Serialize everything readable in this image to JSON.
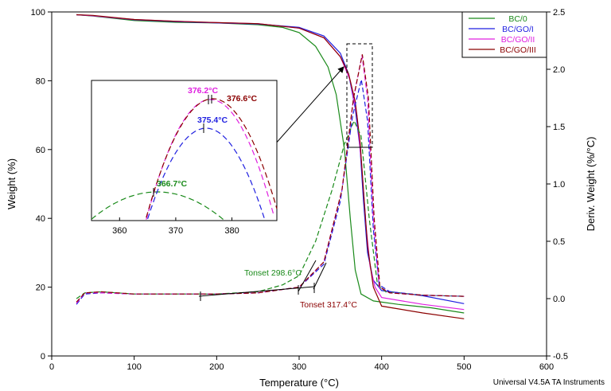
{
  "chart_data": {
    "type": "line",
    "xlabel": "Temperature (°C)",
    "ylabel_left": "Weight (%)",
    "ylabel_right": "Deriv. Weight (%/°C)",
    "xlim": [
      0,
      600
    ],
    "ylim_left": [
      0,
      100
    ],
    "ylim_right": [
      -0.5,
      2.5
    ],
    "x_ticks": [
      "0",
      "100",
      "200",
      "300",
      "400",
      "500",
      "600"
    ],
    "y_left_ticks": [
      "0",
      "20",
      "40",
      "60",
      "80",
      "100"
    ],
    "y_right_ticks": [
      "-0.5",
      "0.0",
      "0.5",
      "1.0",
      "1.5",
      "2.0",
      "2.5"
    ],
    "footer": "Universal V4.5A TA Instruments",
    "legend": {
      "position": "top-right",
      "entries": [
        {
          "label": "BC/0",
          "color": "#1a8a1a"
        },
        {
          "label": "BC/GO/I",
          "color": "#1f1fe0"
        },
        {
          "label": "BC/GO/II",
          "color": "#e020e0"
        },
        {
          "label": "BC/GO/III",
          "color": "#8b0000"
        }
      ]
    },
    "weight_series": [
      {
        "name": "BC/0",
        "color": "#1a8a1a",
        "points": [
          [
            30,
            99.2
          ],
          [
            50,
            98.8
          ],
          [
            100,
            97.5
          ],
          [
            150,
            97
          ],
          [
            200,
            96.8
          ],
          [
            250,
            96.3
          ],
          [
            280,
            95.5
          ],
          [
            300,
            94
          ],
          [
            320,
            90
          ],
          [
            335,
            84
          ],
          [
            345,
            76
          ],
          [
            355,
            60
          ],
          [
            362,
            40
          ],
          [
            368,
            25
          ],
          [
            375,
            18
          ],
          [
            390,
            16
          ],
          [
            420,
            15
          ],
          [
            460,
            14
          ],
          [
            500,
            12.5
          ]
        ]
      },
      {
        "name": "BC/GO/I",
        "color": "#1f1fe0",
        "points": [
          [
            30,
            99.2
          ],
          [
            50,
            98.9
          ],
          [
            100,
            97.7
          ],
          [
            150,
            97.2
          ],
          [
            200,
            96.8
          ],
          [
            250,
            96.5
          ],
          [
            300,
            95.5
          ],
          [
            330,
            93
          ],
          [
            350,
            88
          ],
          [
            360,
            82
          ],
          [
            368,
            72
          ],
          [
            374,
            60
          ],
          [
            378,
            45
          ],
          [
            383,
            30
          ],
          [
            390,
            22
          ],
          [
            400,
            19
          ],
          [
            450,
            17.5
          ],
          [
            500,
            15.2
          ]
        ]
      },
      {
        "name": "BC/GO/II",
        "color": "#e020e0",
        "points": [
          [
            30,
            99.2
          ],
          [
            50,
            98.9
          ],
          [
            100,
            97.8
          ],
          [
            150,
            97.3
          ],
          [
            200,
            96.9
          ],
          [
            250,
            96.6
          ],
          [
            300,
            95.3
          ],
          [
            330,
            92.5
          ],
          [
            350,
            87
          ],
          [
            362,
            80
          ],
          [
            370,
            70
          ],
          [
            376,
            55
          ],
          [
            381,
            38
          ],
          [
            386,
            26
          ],
          [
            392,
            20
          ],
          [
            400,
            17
          ],
          [
            450,
            15
          ],
          [
            500,
            13.5
          ]
        ]
      },
      {
        "name": "BC/GO/III",
        "color": "#8b0000",
        "points": [
          [
            30,
            99.2
          ],
          [
            50,
            99
          ],
          [
            100,
            97.8
          ],
          [
            150,
            97.3
          ],
          [
            200,
            96.9
          ],
          [
            250,
            96.6
          ],
          [
            300,
            95.3
          ],
          [
            330,
            92.5
          ],
          [
            350,
            87
          ],
          [
            360,
            82
          ],
          [
            368,
            74
          ],
          [
            374,
            62
          ],
          [
            378,
            48
          ],
          [
            383,
            32
          ],
          [
            390,
            20
          ],
          [
            400,
            14.5
          ],
          [
            450,
            12.5
          ],
          [
            500,
            10.8
          ]
        ]
      }
    ],
    "deriv_series": [
      {
        "name": "BC/0",
        "color": "#1a8a1a",
        "points": [
          [
            30,
            0.0
          ],
          [
            40,
            0.05
          ],
          [
            60,
            0.06
          ],
          [
            100,
            0.04
          ],
          [
            150,
            0.04
          ],
          [
            200,
            0.04
          ],
          [
            250,
            0.06
          ],
          [
            280,
            0.12
          ],
          [
            300,
            0.2
          ],
          [
            320,
            0.5
          ],
          [
            340,
            0.95
          ],
          [
            355,
            1.35
          ],
          [
            366.7,
            1.55
          ],
          [
            375,
            1.42
          ],
          [
            385,
            0.7
          ],
          [
            395,
            0.12
          ],
          [
            405,
            0.06
          ],
          [
            450,
            0.03
          ],
          [
            500,
            0.02
          ]
        ]
      },
      {
        "name": "BC/GO/I",
        "color": "#1f1fe0",
        "points": [
          [
            30,
            -0.05
          ],
          [
            40,
            0.04
          ],
          [
            60,
            0.05
          ],
          [
            100,
            0.04
          ],
          [
            150,
            0.04
          ],
          [
            200,
            0.04
          ],
          [
            250,
            0.05
          ],
          [
            300,
            0.1
          ],
          [
            330,
            0.3
          ],
          [
            350,
            0.85
          ],
          [
            365,
            1.6
          ],
          [
            375.4,
            1.91
          ],
          [
            383,
            1.55
          ],
          [
            390,
            0.6
          ],
          [
            397,
            0.12
          ],
          [
            410,
            0.06
          ],
          [
            450,
            0.03
          ],
          [
            500,
            0.02
          ]
        ]
      },
      {
        "name": "BC/GO/II",
        "color": "#e020e0",
        "points": [
          [
            30,
            -0.04
          ],
          [
            40,
            0.05
          ],
          [
            60,
            0.05
          ],
          [
            100,
            0.04
          ],
          [
            150,
            0.04
          ],
          [
            200,
            0.04
          ],
          [
            250,
            0.05
          ],
          [
            300,
            0.1
          ],
          [
            330,
            0.32
          ],
          [
            352,
            0.95
          ],
          [
            366,
            1.75
          ],
          [
            376.2,
            2.12
          ],
          [
            383,
            1.75
          ],
          [
            390,
            0.7
          ],
          [
            397,
            0.1
          ],
          [
            410,
            0.05
          ],
          [
            450,
            0.03
          ],
          [
            500,
            0.02
          ]
        ]
      },
      {
        "name": "BC/GO/III",
        "color": "#8b0000",
        "points": [
          [
            30,
            -0.03
          ],
          [
            40,
            0.05
          ],
          [
            60,
            0.06
          ],
          [
            100,
            0.04
          ],
          [
            150,
            0.04
          ],
          [
            200,
            0.04
          ],
          [
            250,
            0.05
          ],
          [
            300,
            0.1
          ],
          [
            330,
            0.32
          ],
          [
            352,
            0.95
          ],
          [
            366,
            1.75
          ],
          [
            376.6,
            2.13
          ],
          [
            384,
            1.75
          ],
          [
            391,
            0.7
          ],
          [
            398,
            0.1
          ],
          [
            410,
            0.05
          ],
          [
            450,
            0.03
          ],
          [
            500,
            0.02
          ]
        ]
      }
    ],
    "annotations": [
      {
        "text": "Tonset 298.6°C",
        "color": "#1a8a1a"
      },
      {
        "text": "Tonset 317.4°C",
        "color": "#8b0000"
      }
    ],
    "inset": {
      "xlim": [
        355,
        388
      ],
      "x_ticks": [
        "360",
        "370",
        "380"
      ],
      "peaks": [
        {
          "label": "376.2°C",
          "color": "#e020e0"
        },
        {
          "label": "376.6°C",
          "color": "#8b0000"
        },
        {
          "label": "375.4°C",
          "color": "#1f1fe0"
        },
        {
          "label": "366.7°C",
          "color": "#1a8a1a"
        }
      ]
    }
  }
}
